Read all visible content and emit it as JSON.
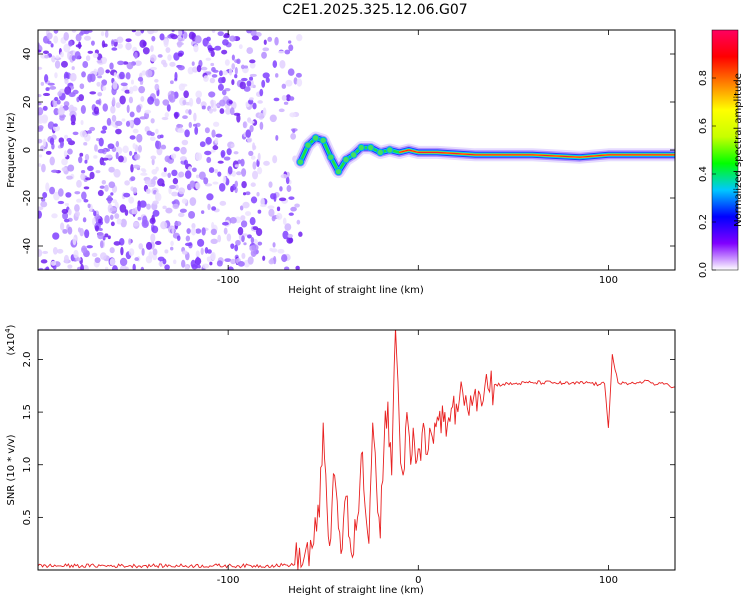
{
  "title": "C2E1.2025.325.12.06.G07",
  "chart_data": [
    {
      "type": "heatmap",
      "xlabel": "Height of straight line (km)",
      "ylabel": "Frequency (Hz)",
      "xlim": [
        -200,
        135
      ],
      "ylim": [
        -50,
        50
      ],
      "x_ticks": [
        -100,
        0,
        100
      ],
      "x_tick_labels": [
        "-100",
        "",
        "100"
      ],
      "y_ticks": [
        -40,
        -20,
        0,
        20,
        40
      ],
      "y_tick_labels": [
        "-40",
        "-20",
        "0",
        "20",
        "40"
      ],
      "noise_region_x": [
        -200,
        -62
      ],
      "signal_track": [
        {
          "x": -62,
          "y": -5
        },
        {
          "x": -58,
          "y": 2
        },
        {
          "x": -54,
          "y": 5
        },
        {
          "x": -50,
          "y": 4
        },
        {
          "x": -46,
          "y": -3
        },
        {
          "x": -42,
          "y": -9
        },
        {
          "x": -38,
          "y": -4
        },
        {
          "x": -34,
          "y": -2
        },
        {
          "x": -30,
          "y": 1
        },
        {
          "x": -25,
          "y": 1
        },
        {
          "x": -20,
          "y": -1
        },
        {
          "x": -15,
          "y": 0
        },
        {
          "x": -10,
          "y": -1
        },
        {
          "x": -5,
          "y": 0
        },
        {
          "x": 0,
          "y": -1
        },
        {
          "x": 10,
          "y": -1
        },
        {
          "x": 30,
          "y": -2
        },
        {
          "x": 60,
          "y": -2
        },
        {
          "x": 85,
          "y": -3
        },
        {
          "x": 100,
          "y": -2
        },
        {
          "x": 120,
          "y": -2
        },
        {
          "x": 135,
          "y": -2
        }
      ],
      "colorbar": {
        "label": "Normalized spectral amplitude",
        "ticks": [
          0.0,
          0.2,
          0.4,
          0.6,
          0.8
        ],
        "tick_labels": [
          "0.0",
          "0.2",
          "0.4",
          "0.6",
          "0.8"
        ],
        "range": [
          0,
          1
        ],
        "colors": [
          "#ffffff",
          "#8000ff",
          "#0000ff",
          "#00c8ff",
          "#00ff00",
          "#c8ff00",
          "#ffff00",
          "#ff8000",
          "#ff0000",
          "#ff0060"
        ]
      }
    },
    {
      "type": "line",
      "xlabel": "Height of straight line (km)",
      "ylabel": "SNR (10 * v/v)",
      "y_multiplier": "(x10",
      "y_multiplier_exp": "4",
      "y_multiplier_close": ")",
      "xlim": [
        -200,
        135
      ],
      "ylim": [
        0,
        22800
      ],
      "x_ticks": [
        -100,
        0,
        100
      ],
      "x_tick_labels": [
        "-100",
        "0",
        "100"
      ],
      "y_ticks": [
        5000,
        10000,
        15000,
        20000
      ],
      "y_tick_labels": [
        "0.5",
        "1.0",
        "1.5",
        "2.0"
      ],
      "series": [
        {
          "color": "#e82020",
          "x": [
            -200,
            -180,
            -160,
            -140,
            -120,
            -100,
            -80,
            -65,
            -60,
            -55,
            -52,
            -50,
            -48,
            -46,
            -44,
            -42,
            -40,
            -38,
            -36,
            -34,
            -32,
            -30,
            -28,
            -26,
            -24,
            -22,
            -20,
            -18,
            -16,
            -14,
            -12,
            -10,
            -8,
            -6,
            -4,
            -2,
            0,
            2,
            4,
            6,
            8,
            10,
            12,
            14,
            16,
            18,
            20,
            25,
            30,
            35,
            40,
            50,
            60,
            70,
            80,
            90,
            95,
            98,
            100,
            102,
            105,
            110,
            115,
            120,
            125,
            130,
            135
          ],
          "y": [
            400,
            400,
            400,
            400,
            400,
            400,
            400,
            500,
            1200,
            2500,
            5000,
            14000,
            6000,
            3000,
            9000,
            4000,
            2000,
            7000,
            3000,
            1500,
            5000,
            11000,
            6000,
            2500,
            14000,
            8000,
            3000,
            12000,
            16000,
            9000,
            23000,
            14000,
            9000,
            15000,
            10000,
            12000,
            11500,
            13000,
            11000,
            13500,
            12000,
            14500,
            13000,
            15000,
            14500,
            15500,
            15800,
            16600,
            17200,
            17500,
            17600,
            17700,
            17800,
            17800,
            17700,
            17800,
            17600,
            17700,
            13500,
            20500,
            17800,
            17600,
            17800,
            18000,
            17600,
            17700,
            17400
          ]
        }
      ]
    }
  ]
}
